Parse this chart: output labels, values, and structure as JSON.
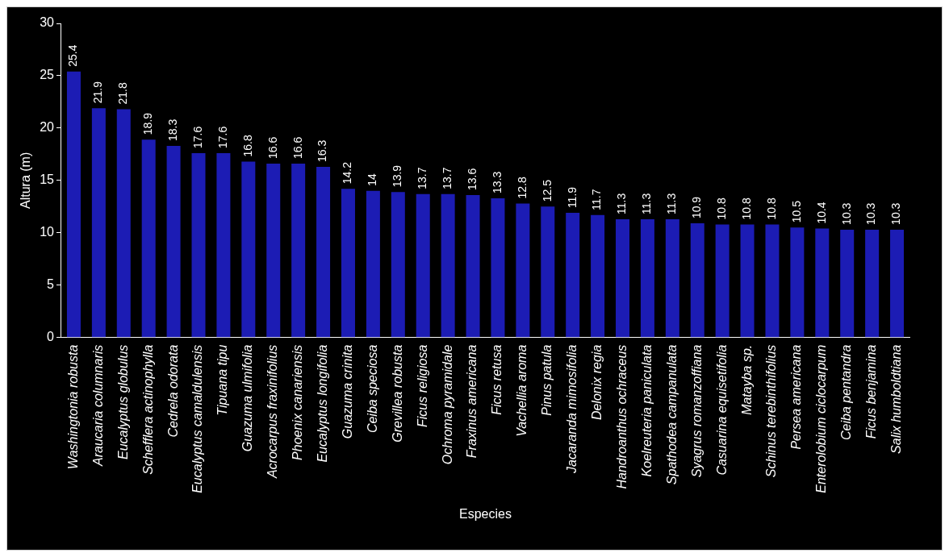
{
  "chart_data": {
    "type": "bar",
    "xlabel": "Especies",
    "ylabel": "Altura (m)",
    "categories": [
      "Washingtonia robusta",
      "Araucaria columnaris",
      "Eucalyptus globulus",
      "Schefflera actinophylla",
      "Cedrela odorata",
      "Eucalyptus camaldulensis",
      "Tipuana tipu",
      "Guazuma ulmifolia",
      "Acrocarpus fraxinifolius",
      "Phoenix canariensis",
      "Eucalyptus longifolia",
      "Guazuma crinita",
      "Ceiba speciosa",
      "Grevillea robusta",
      "Ficus religiosa",
      "Ochroma pyramidale",
      "Fraxinus americana",
      "Ficus retusa",
      "Vachellia aroma",
      "Pinus patula",
      "Jacaranda mimosifolia",
      "Delonix regia",
      "Handroanthus ochraceus",
      "Koelreuteria paniculata",
      "Spathodea campanulata",
      "Syagrus romanzoffiana",
      "Casuarina equisetifolia",
      "Matayba sp.",
      "Schinus terebinthifolius",
      "Persea americana",
      "Enterolobium ciclocarpum",
      "Ceiba pentandra",
      "Ficus benjamina",
      "Salix humboldtiana"
    ],
    "values": [
      25.4,
      21.9,
      21.8,
      18.9,
      18.3,
      17.6,
      17.6,
      16.8,
      16.6,
      16.6,
      16.3,
      14.2,
      14,
      13.9,
      13.7,
      13.7,
      13.6,
      13.3,
      12.8,
      12.5,
      11.9,
      11.7,
      11.3,
      11.3,
      11.3,
      10.9,
      10.8,
      10.8,
      10.8,
      10.5,
      10.4,
      10.3,
      10.3,
      10.3
    ],
    "color": "#1c1cb4",
    "ylim": [
      0,
      30
    ],
    "yticks": [
      0,
      5,
      10,
      15,
      20,
      25,
      30
    ],
    "grid": false,
    "legend": false,
    "data_labels": true
  }
}
